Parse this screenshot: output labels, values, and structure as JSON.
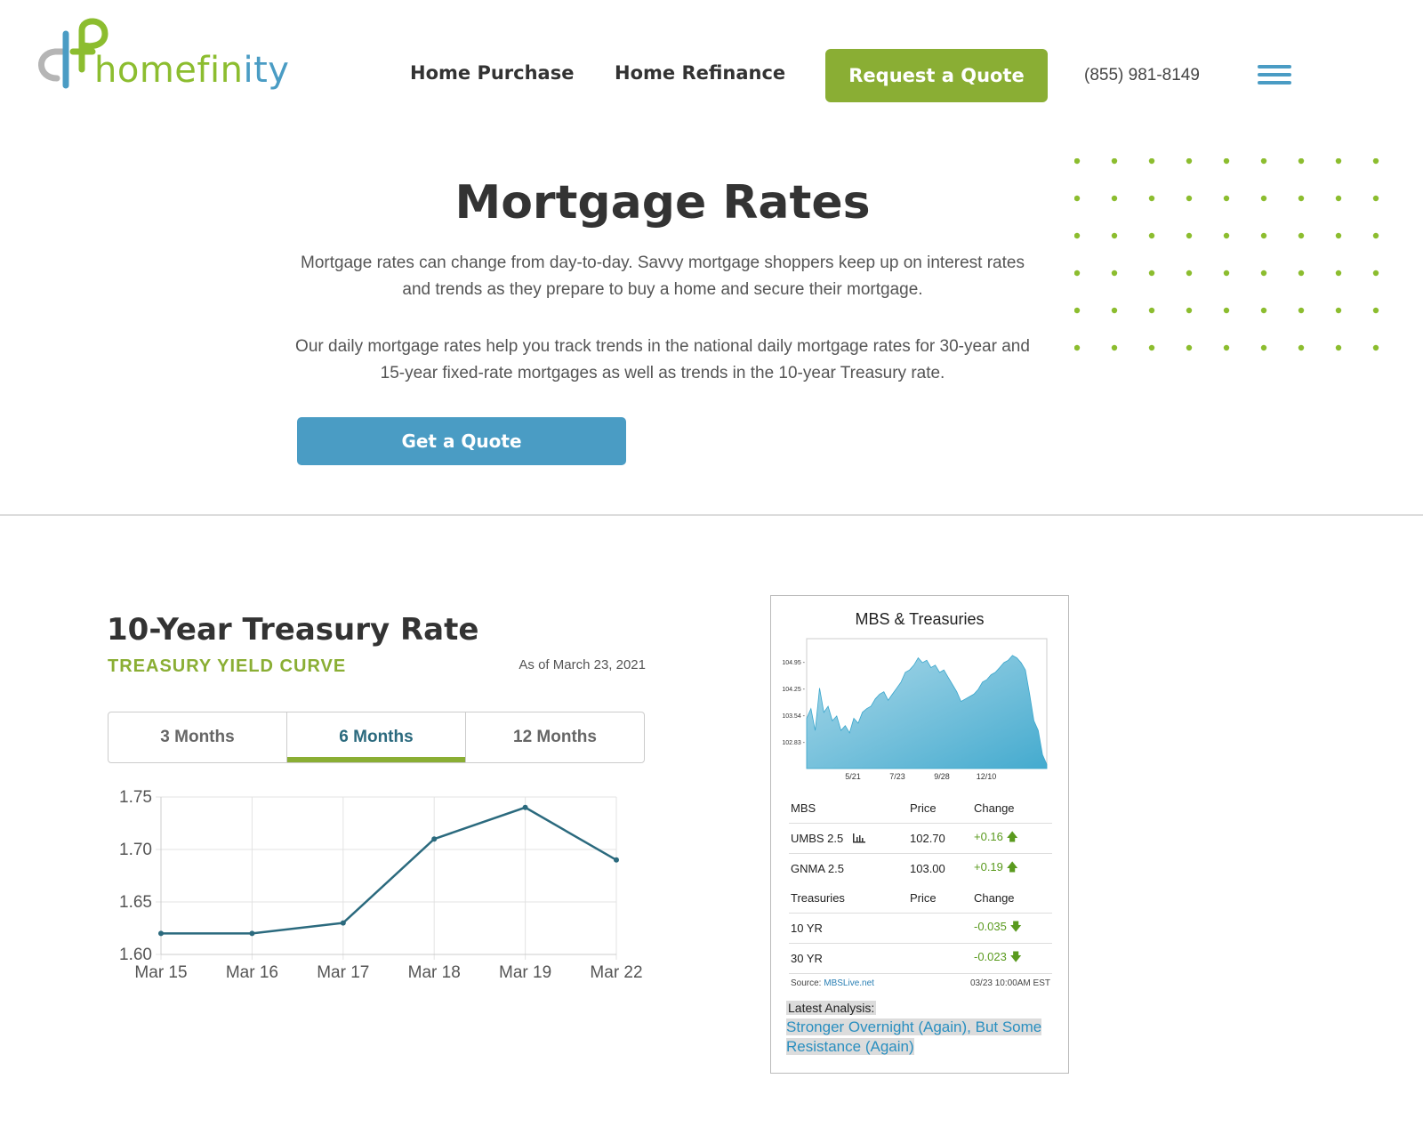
{
  "header": {
    "logo_text_main": "homefin",
    "logo_text_tail": "ity",
    "nav": [
      {
        "label": "Home Purchase"
      },
      {
        "label": "Home Refinance"
      }
    ],
    "cta_label": "Request a Quote",
    "phone": "(855) 981-8149"
  },
  "hero": {
    "title": "Mortgage Rates",
    "paragraph1": "Mortgage rates can change from day-to-day. Savvy mortgage shoppers keep up on interest rates and trends as they prepare to buy a home and secure their mortgage.",
    "paragraph2": "Our daily mortgage rates help you track trends in the national daily mortgage rates for 30-year and 15-year fixed-rate mortgages as well as trends in the 10-year Treasury rate.",
    "button_label": "Get a Quote"
  },
  "treasury": {
    "title": "10-Year Treasury Rate",
    "subtitle": "TREASURY YIELD CURVE",
    "as_of": "As of March 23, 2021",
    "tabs": [
      {
        "label": "3 Months",
        "active": false
      },
      {
        "label": "6 Months",
        "active": true
      },
      {
        "label": "12 Months",
        "active": false
      }
    ]
  },
  "chart_data": {
    "type": "line",
    "categories": [
      "Mar 15",
      "Mar 16",
      "Mar 17",
      "Mar 18",
      "Mar 19",
      "Mar 22"
    ],
    "series": [
      {
        "values": [
          1.62,
          1.62,
          1.63,
          1.71,
          1.74,
          1.69
        ]
      }
    ],
    "yticks": [
      "1.60",
      "1.65",
      "1.70",
      "1.75"
    ],
    "ylim": [
      1.6,
      1.75
    ],
    "grid": true,
    "color": "#2b6a7e"
  },
  "mbs": {
    "title": "MBS & Treasuries",
    "chart": {
      "yticks": [
        "104.95",
        "104.25",
        "103.54",
        "102.83"
      ],
      "xticks": [
        "5/21",
        "7/23",
        "9/28",
        "12/10"
      ]
    },
    "header1": {
      "c1": "MBS",
      "c2": "Price",
      "c3": "Change"
    },
    "rows_mbs": [
      {
        "name": "UMBS 2.5",
        "price": "102.70",
        "change": "+0.16"
      },
      {
        "name": "GNMA 2.5",
        "price": "103.00",
        "change": "+0.19"
      }
    ],
    "header2": {
      "c1": "Treasuries",
      "c2": "Price",
      "c3": "Change"
    },
    "rows_treasuries": [
      {
        "name": "10 YR",
        "price": "",
        "change": "-0.035"
      },
      {
        "name": "30 YR",
        "price": "",
        "change": "-0.023"
      }
    ],
    "source_label": "Source:",
    "source_link": "MBSLive.net",
    "timestamp": "03/23 10:00AM EST",
    "analysis_label": "Latest Analysis:",
    "analysis_link": "Stronger Overnight (Again), But Some Resistance (Again)"
  },
  "colors": {
    "brand_green": "#8aae34",
    "brand_blue": "#4a9cc4",
    "line_teal": "#2b6a7e"
  }
}
